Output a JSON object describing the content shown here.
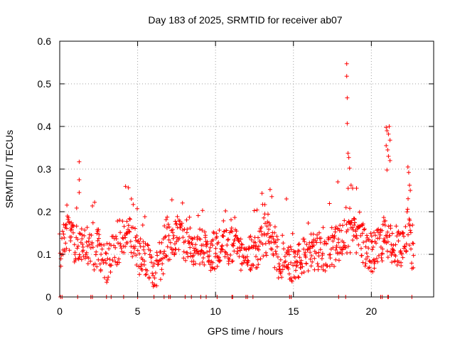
{
  "chart_data": {
    "type": "scatter",
    "title": "Day 183 of 2025, SRMTID for receiver ab07",
    "xlabel": "GPS time / hours",
    "ylabel": "SRMTID / TECUs",
    "xlim": [
      0,
      24
    ],
    "ylim": [
      0,
      0.6
    ],
    "xticks": [
      "0",
      "5",
      "10",
      "15",
      "20"
    ],
    "xtick_values": [
      0,
      5,
      10,
      15,
      20
    ],
    "yticks": [
      "0",
      "0.1",
      "0.2",
      "0.3",
      "0.4",
      "0.5",
      "0.6"
    ],
    "ytick_values": [
      0,
      0.1,
      0.2,
      0.3,
      0.4,
      0.5,
      0.6
    ],
    "grid": true,
    "marker": "+",
    "color": "#ff0000",
    "trend": [
      {
        "x": 0.0,
        "y": 0.11
      },
      {
        "x": 0.5,
        "y": 0.15
      },
      {
        "x": 1.0,
        "y": 0.12
      },
      {
        "x": 1.5,
        "y": 0.13
      },
      {
        "x": 2.0,
        "y": 0.1
      },
      {
        "x": 2.5,
        "y": 0.12
      },
      {
        "x": 2.8,
        "y": 0.07
      },
      {
        "x": 3.5,
        "y": 0.1
      },
      {
        "x": 4.0,
        "y": 0.12
      },
      {
        "x": 4.5,
        "y": 0.15
      },
      {
        "x": 5.0,
        "y": 0.1
      },
      {
        "x": 5.5,
        "y": 0.09
      },
      {
        "x": 6.0,
        "y": 0.06
      },
      {
        "x": 6.5,
        "y": 0.08
      },
      {
        "x": 7.0,
        "y": 0.13
      },
      {
        "x": 7.5,
        "y": 0.15
      },
      {
        "x": 8.0,
        "y": 0.13
      },
      {
        "x": 8.5,
        "y": 0.12
      },
      {
        "x": 9.0,
        "y": 0.12
      },
      {
        "x": 9.5,
        "y": 0.1
      },
      {
        "x": 10.0,
        "y": 0.11
      },
      {
        "x": 10.5,
        "y": 0.13
      },
      {
        "x": 11.0,
        "y": 0.12
      },
      {
        "x": 11.5,
        "y": 0.11
      },
      {
        "x": 12.0,
        "y": 0.1
      },
      {
        "x": 12.5,
        "y": 0.11
      },
      {
        "x": 13.0,
        "y": 0.12
      },
      {
        "x": 13.5,
        "y": 0.14
      },
      {
        "x": 14.0,
        "y": 0.09
      },
      {
        "x": 14.5,
        "y": 0.08
      },
      {
        "x": 15.0,
        "y": 0.07
      },
      {
        "x": 15.5,
        "y": 0.09
      },
      {
        "x": 16.0,
        "y": 0.1
      },
      {
        "x": 16.5,
        "y": 0.11
      },
      {
        "x": 17.0,
        "y": 0.1
      },
      {
        "x": 17.5,
        "y": 0.11
      },
      {
        "x": 18.0,
        "y": 0.13
      },
      {
        "x": 18.5,
        "y": 0.15
      },
      {
        "x": 19.0,
        "y": 0.14
      },
      {
        "x": 19.5,
        "y": 0.12
      },
      {
        "x": 20.0,
        "y": 0.1
      },
      {
        "x": 20.5,
        "y": 0.12
      },
      {
        "x": 21.0,
        "y": 0.14
      },
      {
        "x": 21.5,
        "y": 0.11
      },
      {
        "x": 22.0,
        "y": 0.12
      },
      {
        "x": 22.5,
        "y": 0.15
      },
      {
        "x": 22.7,
        "y": 0.08
      }
    ],
    "spikes": [
      {
        "x": 1.25,
        "y": 0.317
      },
      {
        "x": 1.25,
        "y": 0.275
      },
      {
        "x": 1.25,
        "y": 0.245
      },
      {
        "x": 18.42,
        "y": 0.547
      },
      {
        "x": 18.42,
        "y": 0.518
      },
      {
        "x": 18.45,
        "y": 0.467
      },
      {
        "x": 18.45,
        "y": 0.407
      },
      {
        "x": 18.5,
        "y": 0.337
      },
      {
        "x": 18.55,
        "y": 0.327
      },
      {
        "x": 18.6,
        "y": 0.302
      },
      {
        "x": 18.7,
        "y": 0.262
      },
      {
        "x": 18.8,
        "y": 0.255
      },
      {
        "x": 20.95,
        "y": 0.398
      },
      {
        "x": 21.0,
        "y": 0.39
      },
      {
        "x": 21.1,
        "y": 0.382
      },
      {
        "x": 21.15,
        "y": 0.4
      },
      {
        "x": 21.2,
        "y": 0.368
      },
      {
        "x": 20.95,
        "y": 0.355
      },
      {
        "x": 21.05,
        "y": 0.345
      },
      {
        "x": 21.1,
        "y": 0.33
      },
      {
        "x": 21.2,
        "y": 0.32
      },
      {
        "x": 21.0,
        "y": 0.298
      },
      {
        "x": 22.35,
        "y": 0.305
      },
      {
        "x": 22.4,
        "y": 0.292
      },
      {
        "x": 22.45,
        "y": 0.262
      },
      {
        "x": 22.5,
        "y": 0.25
      },
      {
        "x": 13.5,
        "y": 0.252
      },
      {
        "x": 14.55,
        "y": 0.23
      },
      {
        "x": 4.6,
        "y": 0.23
      },
      {
        "x": 7.2,
        "y": 0.228
      },
      {
        "x": 17.85,
        "y": 0.27
      },
      {
        "x": 19.05,
        "y": 0.255
      }
    ],
    "gaps": [
      0.05,
      0.15,
      1.15,
      2.0,
      2.1,
      3.0,
      3.3,
      4.1,
      5.0,
      6.05,
      6.7,
      7.0,
      7.1,
      8.05,
      8.45,
      9.05,
      9.4,
      10.1,
      11.05,
      11.1,
      11.95,
      12.05,
      12.4,
      14.75,
      14.85,
      17.9,
      18.35,
      20.6,
      20.7,
      21.05,
      21.1,
      22.6
    ]
  }
}
